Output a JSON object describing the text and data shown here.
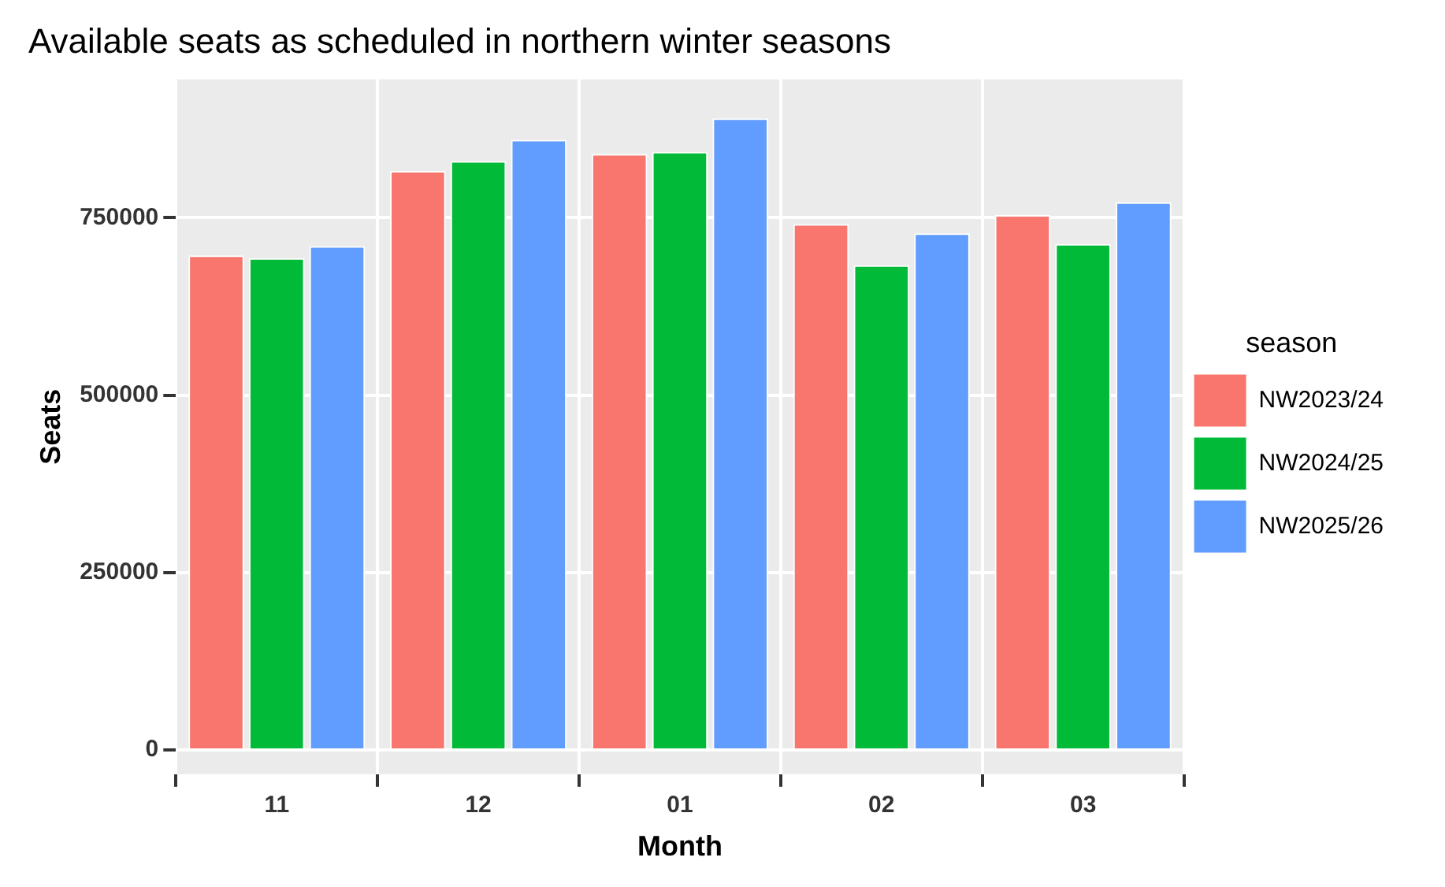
{
  "chart_data": {
    "type": "bar",
    "title": "Available seats as scheduled in northern winter seasons",
    "xlabel": "Month",
    "ylabel": "Seats",
    "legend_title": "season",
    "categories": [
      "11",
      "12",
      "01",
      "02",
      "03"
    ],
    "series": [
      {
        "name": "NW2023/24",
        "color": "#f8766d",
        "values": [
          697000,
          816000,
          840000,
          741000,
          754000
        ]
      },
      {
        "name": "NW2024/25",
        "color": "#00ba38",
        "values": [
          693000,
          830000,
          843000,
          683000,
          713000
        ]
      },
      {
        "name": "NW2025/26",
        "color": "#619cff",
        "values": [
          710000,
          860000,
          890000,
          728000,
          772000
        ]
      }
    ],
    "ylim": [
      -34000,
      945000
    ],
    "yticks": [
      0,
      250000,
      500000,
      750000
    ],
    "grid": true,
    "legend": "right"
  }
}
